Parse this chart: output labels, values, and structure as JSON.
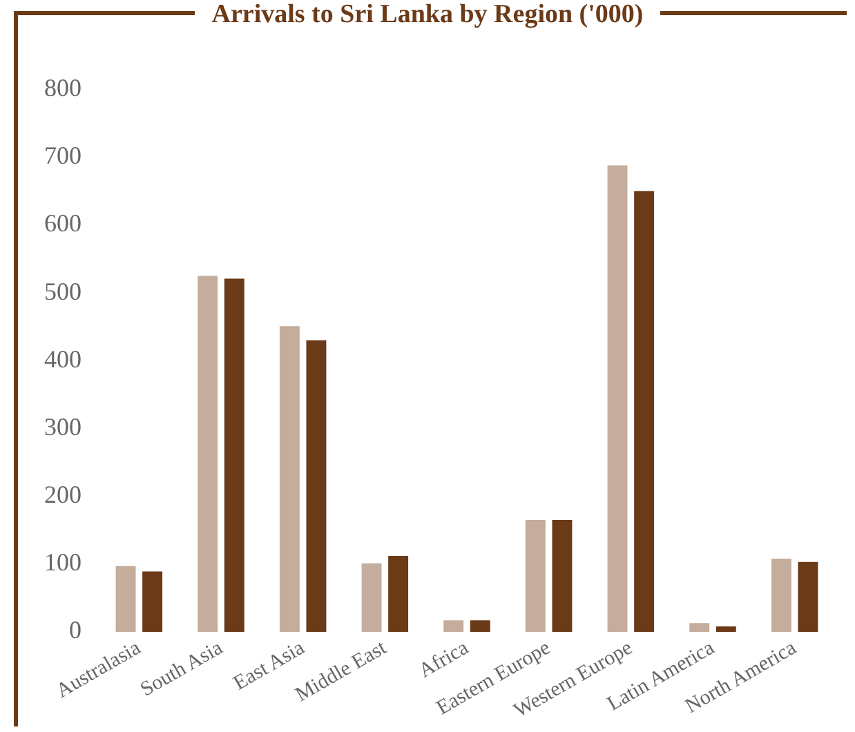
{
  "chart_data": {
    "type": "bar",
    "title": "Arrivals to Sri Lanka by Region ('000)",
    "categories": [
      "Australasia",
      "South Asia",
      "East Asia",
      "Middle East",
      "Africa",
      "Eastern Europe",
      "Western Europe",
      "Latin America",
      "North America"
    ],
    "series": [
      {
        "color": "#c4ad9c",
        "values": [
          97,
          525,
          451,
          101,
          17,
          165,
          688,
          13,
          108
        ]
      },
      {
        "color": "#6b3a17",
        "values": [
          89,
          521,
          430,
          112,
          17,
          165,
          650,
          8,
          103
        ]
      }
    ],
    "ylim": [
      0,
      800
    ],
    "yticks": [
      0,
      100,
      200,
      300,
      400,
      500,
      600,
      700,
      800
    ],
    "grid": false,
    "legend": false
  }
}
